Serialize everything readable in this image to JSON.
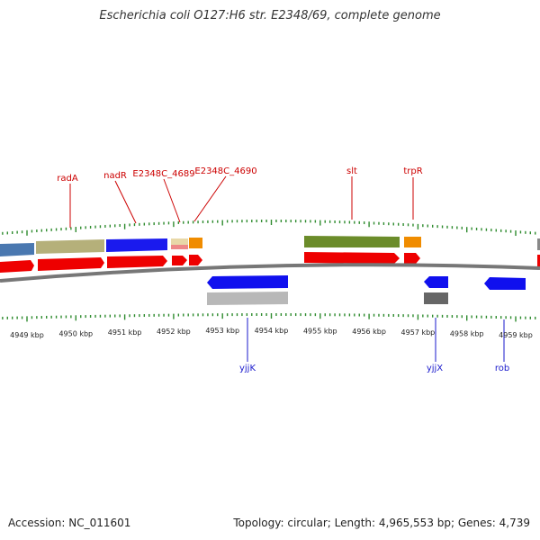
{
  "title": "Escherichia coli O127:H6 str. E2348/69, complete genome",
  "footer": {
    "accession": "Accession: NC_011601",
    "summary": "Topology: circular; Length: 4,965,553 bp; Genes: 4,739"
  },
  "axis": {
    "unit": "kbp",
    "ticks": [
      {
        "label": "4949 kbp",
        "kbp": 4949
      },
      {
        "label": "4950 kbp",
        "kbp": 4950
      },
      {
        "label": "4951 kbp",
        "kbp": 4951
      },
      {
        "label": "4952 kbp",
        "kbp": 4952
      },
      {
        "label": "4953 kbp",
        "kbp": 4953
      },
      {
        "label": "4954 kbp",
        "kbp": 4954
      },
      {
        "label": "4955 kbp",
        "kbp": 4955
      },
      {
        "label": "4956 kbp",
        "kbp": 4956
      },
      {
        "label": "4957 kbp",
        "kbp": 4957
      },
      {
        "label": "4958 kbp",
        "kbp": 4958
      },
      {
        "label": "4959 kbp",
        "kbp": 4959
      }
    ]
  },
  "colors": {
    "top_label": "#cc0000",
    "bottom_label": "#1a1acc",
    "tick": "#2e8b2e",
    "backbone": "#777777",
    "cds": "#ee0000",
    "reverse_gene": "#1010ee",
    "reverse_feature": "#b8b8b8",
    "small_gray": "#666666",
    "blue_gray": "#4a78b0",
    "khaki": "#b5b07a",
    "blue": "#1a1aee",
    "olive": "#6b8c2a",
    "orange": "#f08c00",
    "pink": "#ee8888"
  },
  "genes_top": [
    {
      "label": "radA"
    },
    {
      "label": "nadR"
    },
    {
      "label": "E2348C_4689"
    },
    {
      "label": "E2348C_4690"
    },
    {
      "label": "slt"
    },
    {
      "label": "trpR"
    }
  ],
  "genes_bottom": [
    {
      "label": "yjjK"
    },
    {
      "label": "yjjX"
    },
    {
      "label": "rob"
    }
  ]
}
